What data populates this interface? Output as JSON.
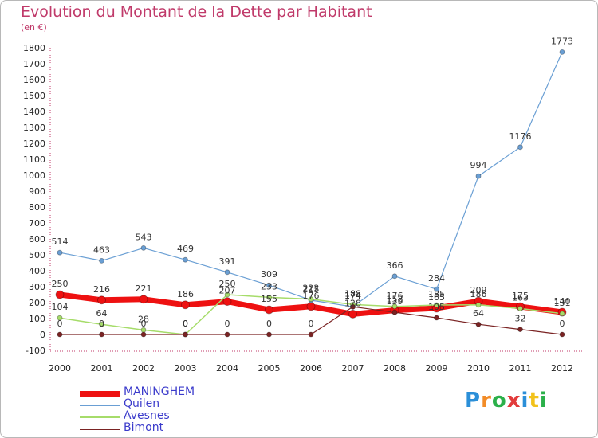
{
  "title": "Evolution du Montant de la Dette par Habitant",
  "unit": "(en €)",
  "logo": {
    "text": "Proxiti",
    "letter_colors": [
      "#2b8fd8",
      "#f28c28",
      "#2bb04a",
      "#e23b3b",
      "#2b8fd8",
      "#f2c21b",
      "#2bb04a"
    ]
  },
  "chart_data": {
    "type": "line",
    "title": "Evolution du Montant de la Dette par Habitant",
    "subtitle": "(en €)",
    "xlabel": "",
    "ylabel": "",
    "x": [
      "2000",
      "2001",
      "2002",
      "2003",
      "2004",
      "2005",
      "2006",
      "2007",
      "2008",
      "2009",
      "2010",
      "2011",
      "2012"
    ],
    "ylim": [
      -100,
      1800
    ],
    "yticks": [
      -100,
      0,
      100,
      200,
      300,
      400,
      500,
      600,
      700,
      800,
      900,
      1000,
      1100,
      1200,
      1300,
      1400,
      1500,
      1600,
      1700,
      1800
    ],
    "grid": false,
    "legend_position": "bottom-left",
    "series": [
      {
        "name": "MANINGHEM",
        "color": "#ee1111",
        "width": 7,
        "marker_r": 5,
        "values": [
          250,
          216,
          221,
          186,
          207,
          155,
          176,
          128,
          152,
          165,
          209,
          175,
          140
        ],
        "labels": [
          "250",
          "216",
          "221",
          "186",
          "207",
          "155",
          "176",
          "128",
          "152",
          "165",
          "209",
          "175",
          "140"
        ]
      },
      {
        "name": "Quilen",
        "color": "#6a9fd4",
        "width": 1.2,
        "marker_r": 3,
        "values": [
          514,
          463,
          543,
          469,
          391,
          309,
          215,
          174,
          366,
          284,
          994,
          1176,
          1773
        ],
        "labels": [
          "514",
          "463",
          "543",
          "469",
          "391",
          "309",
          "215",
          "174",
          "366",
          "284",
          "994",
          "1176",
          "1773"
        ]
      },
      {
        "name": "Avesnes",
        "color": "#a6dc6a",
        "width": 1.5,
        "marker_r": 3,
        "values": [
          104,
          64,
          28,
          0,
          250,
          233,
          222,
          188,
          176,
          185,
          186,
          163,
          131
        ],
        "labels": [
          "104",
          "64",
          "28",
          "0",
          "250",
          "233",
          "222",
          "188",
          "176",
          "185",
          "186",
          "163",
          "131"
        ]
      },
      {
        "name": "Bimont",
        "color": "#7a2323",
        "width": 1.2,
        "marker_r": 3,
        "values": [
          0,
          0,
          0,
          0,
          0,
          0,
          0,
          174,
          139,
          105,
          64,
          32,
          0
        ],
        "labels": [
          "0",
          "0",
          "0",
          "0",
          "0",
          "0",
          "0",
          "174",
          "139",
          "105",
          "64",
          "32",
          "0"
        ]
      }
    ]
  }
}
